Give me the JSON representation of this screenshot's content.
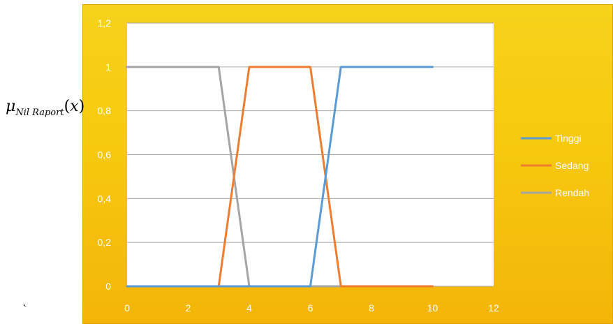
{
  "ylabel": {
    "symbol": "μ",
    "subscript": "Nil Raport",
    "open_paren": "(",
    "variable": "x",
    "close_paren": ")"
  },
  "stray_mark": "`",
  "chart_data": {
    "type": "line",
    "title": "",
    "xlabel": "",
    "ylabel": "μNil Raport(x)",
    "xlim": [
      0,
      12
    ],
    "ylim": [
      0,
      1.2
    ],
    "x_ticks": [
      "0",
      "2",
      "4",
      "6",
      "8",
      "10",
      "12"
    ],
    "y_ticks": [
      "0",
      "0,2",
      "0,4",
      "0,6",
      "0,8",
      "1",
      "1,2"
    ],
    "grid": "horizontal",
    "legend_position": "right",
    "series": [
      {
        "name": "Tinggi",
        "color": "#5b9bd5",
        "points": [
          [
            0,
            0
          ],
          [
            6,
            0
          ],
          [
            7,
            1
          ],
          [
            10,
            1
          ]
        ]
      },
      {
        "name": "Sedang",
        "color": "#ed7d31",
        "points": [
          [
            0,
            0
          ],
          [
            3,
            0
          ],
          [
            4,
            1
          ],
          [
            6,
            1
          ],
          [
            7,
            0
          ],
          [
            10,
            0
          ]
        ]
      },
      {
        "name": "Rendah",
        "color": "#a5a5a5",
        "points": [
          [
            0,
            1
          ],
          [
            3,
            1
          ],
          [
            4,
            0
          ],
          [
            10,
            0
          ]
        ]
      }
    ]
  }
}
